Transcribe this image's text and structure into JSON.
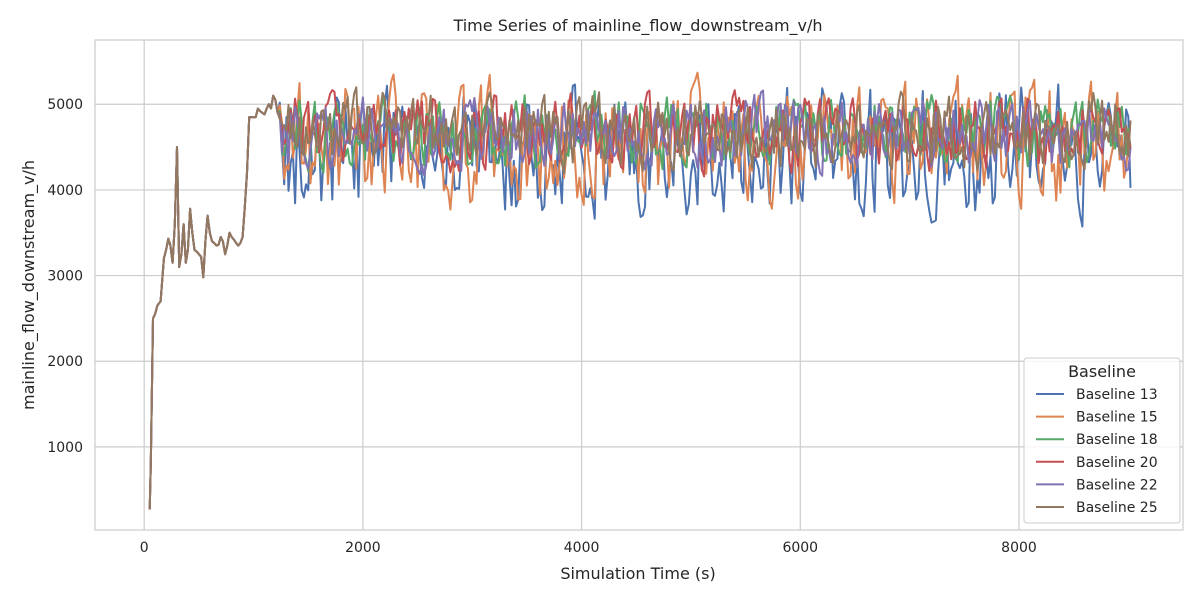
{
  "chart_data": {
    "type": "line",
    "title": "Time Series of mainline_flow_downstream_v/h",
    "xlabel": "Simulation Time (s)",
    "ylabel": "mainline_flow_downstream_v/h",
    "xlim": [
      -450,
      9500
    ],
    "ylim": [
      30,
      5750
    ],
    "xticks": [
      0,
      2000,
      4000,
      6000,
      8000
    ],
    "yticks": [
      1000,
      2000,
      3000,
      4000,
      5000
    ],
    "grid": true,
    "legend": {
      "title": "Baseline",
      "placement": "lower-right"
    },
    "series": [
      {
        "name": "Baseline 13",
        "color": "#4c72b0",
        "seed": 13
      },
      {
        "name": "Baseline 15",
        "color": "#dd8452",
        "seed": 15
      },
      {
        "name": "Baseline 18",
        "color": "#55a868",
        "seed": 18
      },
      {
        "name": "Baseline 20",
        "color": "#c44e52",
        "seed": 20
      },
      {
        "name": "Baseline 22",
        "color": "#8172b3",
        "seed": 22
      },
      {
        "name": "Baseline 25",
        "color": "#937860",
        "seed": 25
      }
    ],
    "shared_x": [
      50,
      60,
      80,
      100,
      120,
      150,
      180,
      200,
      220,
      240,
      260,
      280,
      300,
      320,
      340,
      360,
      380,
      400,
      420,
      440,
      460,
      480,
      500,
      520,
      540,
      560,
      580,
      600,
      620,
      640,
      660,
      680,
      700,
      720,
      740,
      760,
      780,
      800,
      820,
      840,
      860,
      880,
      900,
      920,
      940,
      960,
      980,
      1000,
      1020,
      1040,
      1060,
      1080,
      1100,
      1120,
      1140,
      1160,
      1180,
      1200,
      1220
    ],
    "shared_y": [
      270,
      800,
      2500,
      2550,
      2650,
      2700,
      3200,
      3300,
      3430,
      3350,
      3150,
      3600,
      4500,
      3100,
      3250,
      3600,
      3150,
      3300,
      3780,
      3500,
      3300,
      3280,
      3250,
      3220,
      2980,
      3400,
      3700,
      3500,
      3400,
      3380,
      3350,
      3360,
      3450,
      3400,
      3250,
      3350,
      3500,
      3450,
      3420,
      3380,
      3350,
      3380,
      3450,
      3800,
      4200,
      4850,
      4850,
      4850,
      4850,
      4950,
      4920,
      4900,
      4880,
      4950,
      5000,
      4950,
      5100,
      5050,
      4900
    ],
    "series_x_start": 1240,
    "series_x_end": 9020,
    "series_x_step": 20,
    "series_value_range": [
      3050,
      5500
    ]
  }
}
